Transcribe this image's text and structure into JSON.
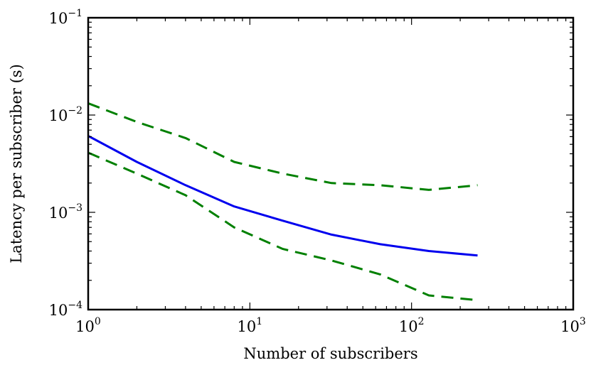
{
  "chart_data": {
    "type": "line",
    "xlabel": "Number of subscribers",
    "ylabel": "Latency per subscriber (s)",
    "x_scale": "log",
    "y_scale": "log",
    "xlim": [
      1,
      1000
    ],
    "ylim": [
      0.0001,
      0.1
    ],
    "x_ticks": [
      {
        "base": "10",
        "exp": "0",
        "value": 1
      },
      {
        "base": "10",
        "exp": "1",
        "value": 10
      },
      {
        "base": "10",
        "exp": "2",
        "value": 100
      },
      {
        "base": "10",
        "exp": "3",
        "value": 1000
      }
    ],
    "y_ticks": [
      {
        "base": "10",
        "exp": "−4",
        "value": 0.0001
      },
      {
        "base": "10",
        "exp": "−3",
        "value": 0.001
      },
      {
        "base": "10",
        "exp": "−2",
        "value": 0.01
      },
      {
        "base": "10",
        "exp": "−1",
        "value": 0.1
      }
    ],
    "grid": false,
    "series": [
      {
        "color": "#0000ee",
        "style": "solid",
        "x": [
          1,
          2,
          4,
          8,
          16,
          32,
          64,
          128,
          256
        ],
        "y": [
          0.0061,
          0.0033,
          0.0019,
          0.00115,
          0.00082,
          0.00059,
          0.00047,
          0.0004,
          0.00036
        ]
      },
      {
        "color": "#008000",
        "style": "dashed",
        "x": [
          1,
          2,
          4,
          8,
          16,
          32,
          64,
          128,
          256
        ],
        "y": [
          0.0132,
          0.0085,
          0.0058,
          0.0033,
          0.0025,
          0.002,
          0.0019,
          0.0017,
          0.0019
        ]
      },
      {
        "color": "#008000",
        "style": "dashed",
        "x": [
          1,
          2,
          4,
          8,
          16,
          32,
          64,
          128,
          256
        ],
        "y": [
          0.0041,
          0.0025,
          0.0015,
          0.0007,
          0.00042,
          0.00032,
          0.00023,
          0.00014,
          0.000125
        ]
      }
    ]
  }
}
